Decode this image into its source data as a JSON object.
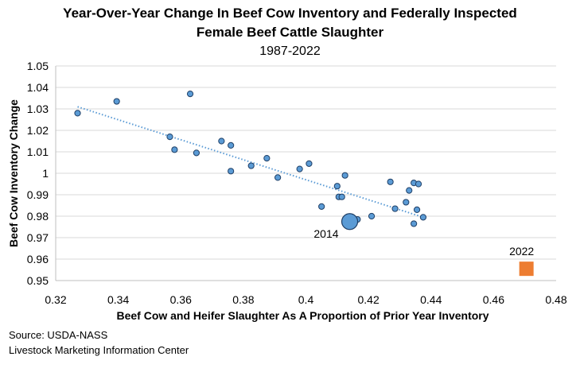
{
  "header": {
    "title_line1": "Year-Over-Year Change In Beef Cow Inventory and Federally Inspected",
    "title_line2": "Female Beef Cattle Slaughter",
    "subtitle": "1987-2022"
  },
  "chart_data": {
    "type": "scatter",
    "xlabel": "Beef Cow and Heifer Slaughter As A Proportion of Prior Year Inventory",
    "ylabel": "Beef Cow Inventory Change",
    "xlim": [
      0.32,
      0.48
    ],
    "ylim": [
      0.95,
      1.05
    ],
    "x_ticks": [
      "0.32",
      "0.34",
      "0.36",
      "0.38",
      "0.4",
      "0.42",
      "0.44",
      "0.46",
      "0.48"
    ],
    "y_ticks": [
      "0.95",
      "0.96",
      "0.97",
      "0.98",
      "0.99",
      "1",
      "1.01",
      "1.02",
      "1.03",
      "1.04",
      "1.05"
    ],
    "grid": "horizontal",
    "series": [
      {
        "color": "#5b9bd5",
        "edge": "#1f3f66",
        "points": [
          [
            0.327,
            1.028
          ],
          [
            0.3395,
            1.0335
          ],
          [
            0.3565,
            1.017
          ],
          [
            0.358,
            1.011
          ],
          [
            0.363,
            1.037
          ],
          [
            0.365,
            1.0095
          ],
          [
            0.373,
            1.015
          ],
          [
            0.376,
            1.013
          ],
          [
            0.376,
            1.001
          ],
          [
            0.3825,
            1.0035
          ],
          [
            0.3875,
            1.007
          ],
          [
            0.391,
            0.998
          ],
          [
            0.398,
            1.002
          ],
          [
            0.401,
            1.0045
          ],
          [
            0.41,
            0.994
          ],
          [
            0.4105,
            0.989
          ],
          [
            0.4115,
            0.989
          ],
          [
            0.4125,
            0.999
          ],
          [
            0.405,
            0.9845
          ],
          [
            0.4165,
            0.9785
          ],
          [
            0.421,
            0.98
          ],
          [
            0.427,
            0.996
          ],
          [
            0.4285,
            0.9835
          ],
          [
            0.432,
            0.9865
          ],
          [
            0.433,
            0.992
          ],
          [
            0.4345,
            0.9955
          ],
          [
            0.436,
            0.995
          ],
          [
            0.4345,
            0.9765
          ],
          [
            0.4355,
            0.983
          ],
          [
            0.4375,
            0.9795
          ]
        ]
      }
    ],
    "highlight_points": [
      {
        "label": "2014",
        "x": 0.414,
        "y": 0.9775,
        "color": "#5b9bd5",
        "edge": "#1f3f66"
      },
      {
        "label": "2022",
        "x": 0.4705,
        "y": 0.9555,
        "color": "#ed7d31"
      }
    ],
    "trendline": {
      "x": [
        0.327,
        0.4375
      ],
      "y": [
        1.031,
        0.9795
      ],
      "color": "#5b9bd5",
      "style": "dotted"
    }
  },
  "footer": {
    "source": "Source: USDA-NASS",
    "org": "Livestock Marketing Information Center"
  }
}
